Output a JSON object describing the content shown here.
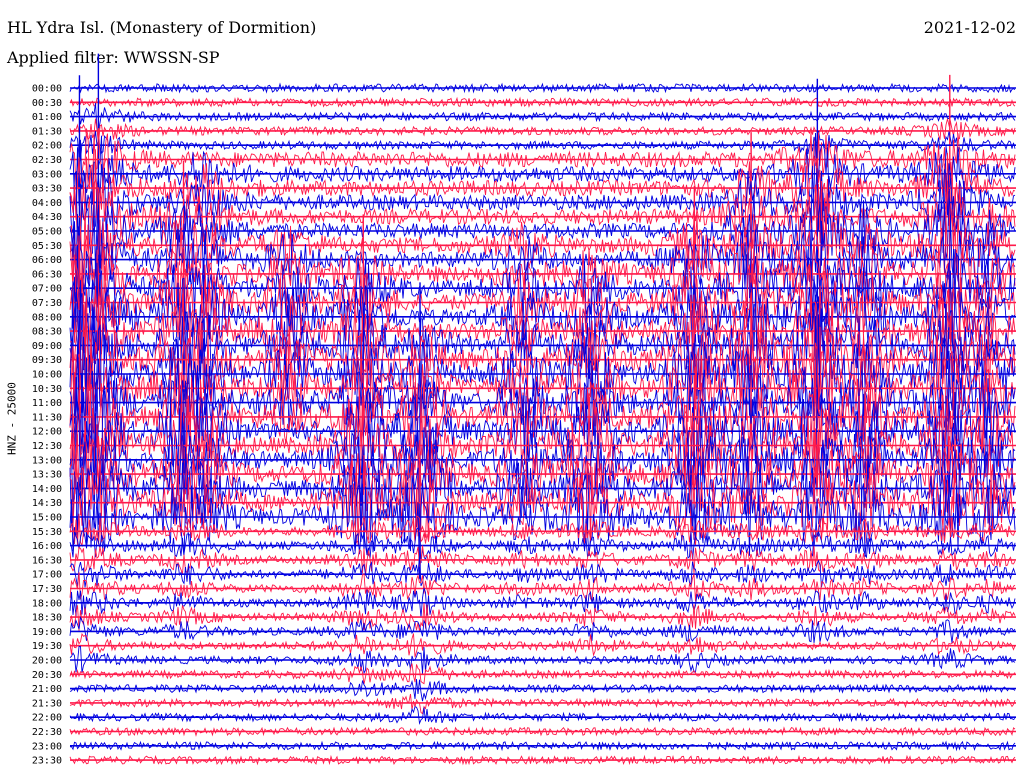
{
  "header": {
    "station": "HL Ydra Isl. (Monastery of Dormition)",
    "filter": "Applied filter: WWSSN-SP",
    "date": "2021-12-02"
  },
  "axis": {
    "ylabel": "HNZ - 25000"
  },
  "colors": {
    "blue": "#0000e0",
    "red": "#ff1a4a",
    "text": "#000000",
    "background": "#ffffff"
  },
  "chart_data": {
    "type": "helicorder",
    "time_labels": [
      "00:00",
      "00:30",
      "01:00",
      "01:30",
      "02:00",
      "02:30",
      "03:00",
      "03:30",
      "04:00",
      "04:30",
      "05:00",
      "05:30",
      "06:00",
      "06:30",
      "07:00",
      "07:30",
      "08:00",
      "08:30",
      "09:00",
      "09:30",
      "10:00",
      "10:30",
      "11:00",
      "11:30",
      "12:00",
      "12:30",
      "13:00",
      "13:30",
      "14:00",
      "14:30",
      "15:00",
      "15:30",
      "16:00",
      "16:30",
      "17:00",
      "17:30",
      "18:00",
      "18:30",
      "19:00",
      "19:30",
      "20:00",
      "20:30",
      "21:00",
      "21:30",
      "22:00",
      "22:30",
      "23:00",
      "23:30"
    ],
    "trace_colors": [
      "blue",
      "red"
    ],
    "line_minutes": 30,
    "x_range_fraction": [
      0,
      1
    ],
    "events": [
      {
        "x": 0.01,
        "start": 4,
        "end": 40,
        "amp": 1.0
      },
      {
        "x": 0.03,
        "start": 2,
        "end": 36,
        "amp": 0.9
      },
      {
        "x": 0.12,
        "start": 9,
        "end": 38,
        "amp": 0.8
      },
      {
        "x": 0.14,
        "start": 6,
        "end": 34,
        "amp": 0.7
      },
      {
        "x": 0.23,
        "start": 11,
        "end": 23,
        "amp": 0.6
      },
      {
        "x": 0.31,
        "start": 13,
        "end": 42,
        "amp": 0.85
      },
      {
        "x": 0.37,
        "start": 18,
        "end": 44,
        "amp": 0.9
      },
      {
        "x": 0.48,
        "start": 11,
        "end": 36,
        "amp": 0.55
      },
      {
        "x": 0.55,
        "start": 13,
        "end": 39,
        "amp": 0.75
      },
      {
        "x": 0.66,
        "start": 11,
        "end": 40,
        "amp": 0.85
      },
      {
        "x": 0.72,
        "start": 7,
        "end": 35,
        "amp": 0.8
      },
      {
        "x": 0.79,
        "start": 4,
        "end": 38,
        "amp": 0.95
      },
      {
        "x": 0.84,
        "start": 10,
        "end": 36,
        "amp": 0.7
      },
      {
        "x": 0.93,
        "start": 3,
        "end": 40,
        "amp": 0.8
      },
      {
        "x": 0.97,
        "start": 9,
        "end": 37,
        "amp": 0.6
      }
    ],
    "noise_level": 0.12,
    "active_rows": [
      5,
      30
    ]
  }
}
